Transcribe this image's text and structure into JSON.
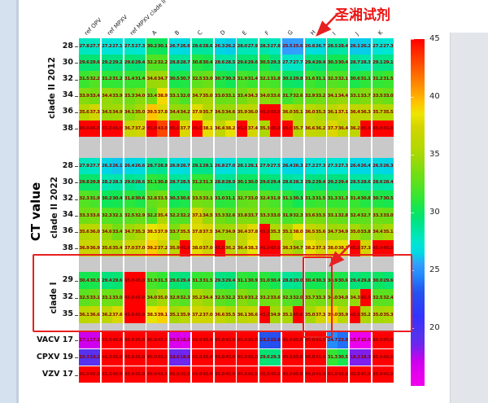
{
  "chart_data": {
    "type": "heatmap",
    "ylabel": "CT value",
    "annotation": {
      "text": "圣湘试剂",
      "points_to_column": "H"
    },
    "colorbar": {
      "ticks": [
        45,
        40,
        35,
        30,
        25,
        20
      ],
      "vmin": 15,
      "vmax": 45,
      "top_color": "#ff0000",
      "bottom_color": "#ff00ff"
    },
    "columns": [
      "ref OPV",
      "ref MPXV",
      "ref MPXV clade II",
      "A",
      "B",
      "C",
      "D",
      "E",
      "F",
      "G",
      "H",
      "I",
      "J",
      "K"
    ],
    "replicates_per_column": 2,
    "sections": [
      {
        "label": "clade II 2012",
        "rows": [
          {
            "label": "28",
            "values": [
              27.8,
              27.7,
              27.2,
              27.1,
              27.5,
              27.3,
              30.2,
              30.1,
              26.7,
              26.6,
              28.6,
              28.6,
              26.3,
              26.2,
              28.0,
              27.9,
              28.3,
              27.8,
              25.5,
              25.6,
              26.8,
              26.7,
              28.5,
              28.4,
              26.1,
              26.2,
              27.2,
              27.3
            ]
          },
          {
            "label": "30",
            "values": [
              29.6,
              29.6,
              29.2,
              29.2,
              29.6,
              29.4,
              32.2,
              32.2,
              28.8,
              28.7,
              30.8,
              30.4,
              28.6,
              28.5,
              29.6,
              29.6,
              30.5,
              29.3,
              27.7,
              27.7,
              29.4,
              29.4,
              30.3,
              30.4,
              28.7,
              28.3,
              29.1,
              29.1
            ]
          },
          {
            "label": "32",
            "values": [
              31.5,
              32.2,
              31.2,
              31.2,
              31.4,
              31.4,
              34.6,
              34.7,
              30.5,
              30.7,
              32.5,
              33.0,
              30.7,
              30.3,
              31.9,
              31.4,
              32.1,
              31.8,
              30.1,
              29.8,
              31.6,
              31.1,
              32.3,
              32.1,
              30.6,
              31.1,
              31.2,
              31.5
            ]
          },
          {
            "label": "34",
            "values": [
              33.9,
              33.4,
              34.4,
              33.9,
              33.3,
              34.0,
              33.4,
              38.9,
              33.1,
              32.0,
              34.7,
              35.0,
              33.0,
              33.1,
              33.4,
              34.3,
              34.0,
              33.6,
              31.7,
              32.6,
              32.9,
              33.2,
              34.1,
              34.4,
              33.1,
              33.7,
              33.5,
              33.0
            ]
          },
          {
            "label": "36",
            "values": [
              35.6,
              37.3,
              34.5,
              34.9,
              34.1,
              35.0,
              39.5,
              37.8,
              34.4,
              34.2,
              37.9,
              35.7,
              34.5,
              34.6,
              35.9,
              36.0,
              45.0,
              45.0,
              36.0,
              35.1,
              36.0,
              35.3,
              36.1,
              37.1,
              36.4,
              36.3,
              35.7,
              35.5
            ]
          },
          {
            "label": "38",
            "values": [
              45.0,
              45.0,
              45.0,
              45.0,
              36.7,
              37.2,
              45.0,
              43.0,
              45.0,
              37.7,
              45.0,
              38.1,
              36.4,
              38.2,
              45.0,
              37.4,
              35.3,
              45.0,
              45.0,
              35.7,
              36.6,
              36.2,
              37.7,
              36.4,
              36.2,
              45.0,
              45.0,
              45.0
            ]
          }
        ]
      },
      {
        "label": "clade II 2022",
        "rows": [
          {
            "label": "28",
            "values": [
              27.9,
              27.7,
              26.3,
              26.1,
              26.4,
              26.6,
              28.7,
              28.9,
              26.9,
              26.7,
              29.1,
              29.1,
              26.8,
              27.0,
              28.1,
              28.1,
              27.9,
              27.5,
              26.4,
              26.3,
              27.2,
              27.3,
              27.3,
              27.3,
              26.4,
              26.4,
              26.5,
              26.3
            ]
          },
          {
            "label": "30",
            "values": [
              29.8,
              29.8,
              28.2,
              28.3,
              29.0,
              28.6,
              31.1,
              30.8,
              28.7,
              28.5,
              31.2,
              31.3,
              28.8,
              28.9,
              30.1,
              30.0,
              29.6,
              29.4,
              28.6,
              28.3,
              29.2,
              29.4,
              29.2,
              29.4,
              28.5,
              28.6,
              28.6,
              28.4
            ]
          },
          {
            "label": "32",
            "values": [
              32.3,
              31.9,
              30.2,
              30.4,
              31.0,
              30.6,
              32.8,
              33.5,
              30.3,
              30.6,
              33.5,
              33.1,
              31.0,
              31.1,
              32.7,
              33.0,
              32.4,
              31.9,
              31.1,
              30.3,
              31.3,
              31.5,
              31.3,
              31.3,
              31.4,
              30.8,
              30.7,
              30.5
            ]
          },
          {
            "label": "34",
            "values": [
              33.3,
              33.6,
              32.3,
              32.1,
              32.5,
              32.9,
              32.2,
              35.4,
              32.2,
              32.2,
              37.1,
              34.5,
              33.3,
              32.6,
              33.8,
              33.7,
              33.3,
              33.0,
              31.9,
              32.3,
              33.6,
              33.5,
              33.1,
              32.8,
              32.4,
              32.7,
              33.3,
              33.0
            ]
          },
          {
            "label": "36",
            "values": [
              35.6,
              36.0,
              34.6,
              33.4,
              34.7,
              35.3,
              38.3,
              37.9,
              33.7,
              35.5,
              37.8,
              37.5,
              34.7,
              34.9,
              36.4,
              37.8,
              45.0,
              35.3,
              35.1,
              38.0,
              36.5,
              35.6,
              34.7,
              34.9,
              35.0,
              33.8,
              34.4,
              35.1
            ]
          },
          {
            "label": "38",
            "values": [
              36.9,
              36.9,
              35.6,
              35.4,
              37.0,
              37.0,
              39.2,
              37.2,
              35.9,
              45.0,
              38.0,
              37.0,
              45.0,
              36.2,
              36.4,
              38.3,
              45.0,
              45.0,
              36.3,
              34.7,
              38.2,
              37.3,
              38.0,
              38.1,
              45.0,
              37.3,
              45.0,
              45.0
            ]
          }
        ]
      },
      {
        "label": "clade I",
        "highlighted": true,
        "rows": [
          {
            "label": "29",
            "values": [
              30.4,
              30.5,
              29.4,
              29.6,
              45.0,
              45.0,
              31.9,
              31.3,
              29.6,
              29.4,
              31.3,
              31.5,
              29.3,
              29.4,
              31.1,
              30.9,
              31.0,
              30.4,
              28.8,
              29.0,
              30.4,
              30.3,
              30.9,
              30.6,
              29.4,
              29.8,
              30.0,
              29.6
            ]
          },
          {
            "label": "32",
            "values": [
              32.5,
              33.1,
              33.1,
              33.0,
              45.0,
              45.0,
              34.0,
              35.0,
              32.9,
              32.3,
              35.2,
              34.4,
              32.5,
              32.2,
              33.9,
              33.2,
              33.2,
              33.6,
              32.3,
              32.0,
              33.7,
              33.3,
              34.0,
              34.0,
              34.3,
              45.0,
              32.5,
              32.4
            ]
          },
          {
            "label": "35",
            "values": [
              36.1,
              36.6,
              36.2,
              37.6,
              45.0,
              45.0,
              38.3,
              39.1,
              35.1,
              35.9,
              37.2,
              37.0,
              36.6,
              35.5,
              36.1,
              36.6,
              45.0,
              34.9,
              35.1,
              45.0,
              35.0,
              37.3,
              39.0,
              35.9,
              45.0,
              35.2,
              35.0,
              35.3
            ]
          }
        ]
      },
      {
        "label": "",
        "rows": [
          {
            "label": "VACV 17",
            "values": [
              17.1,
              17.1,
              45.0,
              45.0,
              45.0,
              45.0,
              45.0,
              45.0,
              16.5,
              16.3,
              45.0,
              45.0,
              45.0,
              45.0,
              45.0,
              45.0,
              23.2,
              22.8,
              45.0,
              45.0,
              45.0,
              45.0,
              24.7,
              23.9,
              15.7,
              15.5,
              45.0,
              45.0
            ]
          },
          {
            "label": "CPXV 19",
            "values": [
              19.3,
              19.2,
              45.0,
              45.0,
              45.0,
              45.0,
              45.0,
              45.0,
              18.6,
              18.6,
              45.0,
              45.0,
              45.0,
              45.0,
              45.0,
              45.0,
              29.6,
              29.3,
              45.0,
              45.0,
              45.0,
              45.0,
              31.3,
              30.5,
              18.3,
              18.3,
              45.0,
              45.0
            ]
          },
          {
            "label": "VZV 17",
            "values": [
              45.0,
              45.0,
              45.0,
              45.0,
              45.0,
              45.0,
              45.0,
              45.0,
              45.0,
              45.0,
              45.0,
              45.0,
              45.0,
              45.0,
              45.0,
              45.0,
              45.0,
              45.0,
              45.0,
              45.0,
              45.0,
              45.0,
              45.0,
              45.0,
              45.0,
              45.0,
              45.0,
              45.0
            ]
          }
        ]
      }
    ]
  }
}
